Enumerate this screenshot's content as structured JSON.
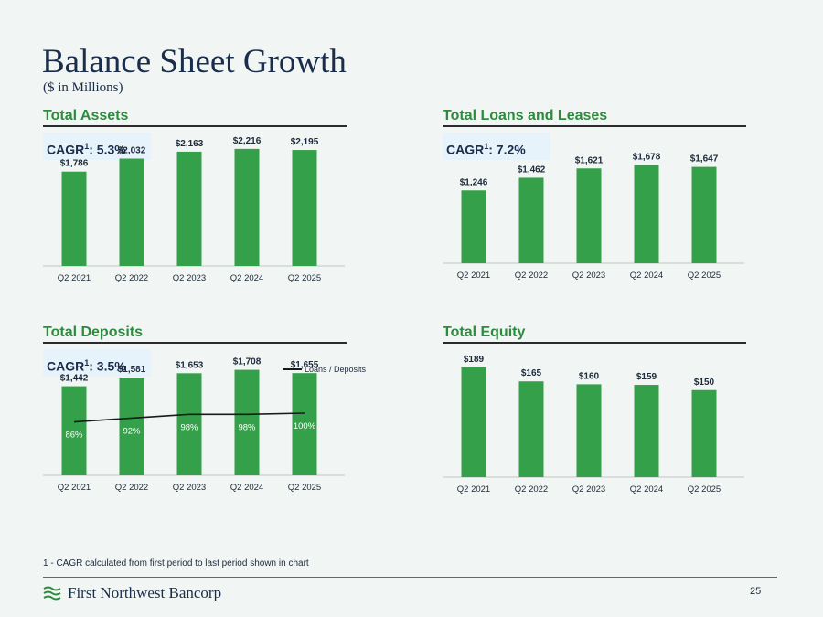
{
  "title": "Balance Sheet Growth",
  "subtitle": "($ in Millions)",
  "colors": {
    "bar": "#35a04a",
    "heading": "#2e8b3e",
    "cagr_box": "#e6f3fb",
    "line": "#1a1a1a"
  },
  "chart_data": [
    {
      "id": "assets",
      "type": "bar",
      "title": "Total Assets",
      "cagr_label": "CAGR",
      "cagr_sup": "1",
      "cagr_value": ": 5.3%",
      "categories": [
        "Q2 2021",
        "Q2 2022",
        "Q2 2023",
        "Q2 2024",
        "Q2 2025"
      ],
      "values": [
        1786,
        2032,
        2163,
        2216,
        2195
      ],
      "data_labels": [
        "$1,786",
        "$2,032",
        "$2,163",
        "$2,216",
        "$2,195"
      ],
      "ylim": [
        0,
        2300
      ]
    },
    {
      "id": "loans",
      "type": "bar",
      "title": "Total Loans and Leases",
      "cagr_label": "CAGR",
      "cagr_sup": "1",
      "cagr_value": ": 7.2%",
      "categories": [
        "Q2 2021",
        "Q2 2022",
        "Q2 2023",
        "Q2 2024",
        "Q2 2025"
      ],
      "values": [
        1246,
        1462,
        1621,
        1678,
        1647
      ],
      "data_labels": [
        "$1,246",
        "$1,462",
        "$1,621",
        "$1,678",
        "$1,647"
      ],
      "ylim": [
        0,
        1750
      ]
    },
    {
      "id": "deposits",
      "type": "bar",
      "title": "Total Deposits",
      "cagr_label": "CAGR",
      "cagr_sup": "1",
      "cagr_value": ": 3.5%",
      "categories": [
        "Q2 2021",
        "Q2 2022",
        "Q2 2023",
        "Q2 2024",
        "Q2 2025"
      ],
      "values": [
        1442,
        1581,
        1653,
        1708,
        1655
      ],
      "data_labels": [
        "$1,442",
        "$1,581",
        "$1,653",
        "$1,708",
        "$1,655"
      ],
      "ylim": [
        0,
        1850
      ],
      "line_series": {
        "name": "Loans / Deposits",
        "values": [
          86,
          92,
          98,
          98,
          100
        ],
        "data_labels": [
          "86%",
          "92%",
          "98%",
          "98%",
          "100%"
        ],
        "ylim": [
          0,
          125
        ]
      },
      "legend_position": "top-right"
    },
    {
      "id": "equity",
      "type": "bar",
      "title": "Total Equity",
      "categories": [
        "Q2 2021",
        "Q2 2022",
        "Q2 2023",
        "Q2 2024",
        "Q2 2025"
      ],
      "values": [
        189,
        165,
        160,
        159,
        150
      ],
      "data_labels": [
        "$189",
        "$165",
        "$160",
        "$159",
        "$150"
      ],
      "ylim": [
        0,
        200
      ]
    }
  ],
  "footnote": "1 - CAGR calculated from first period to last period shown in chart",
  "footer": {
    "logo_text": "First Northwest Bancorp",
    "logo_icon": "wave-stripes-icon",
    "page_number": "25"
  }
}
